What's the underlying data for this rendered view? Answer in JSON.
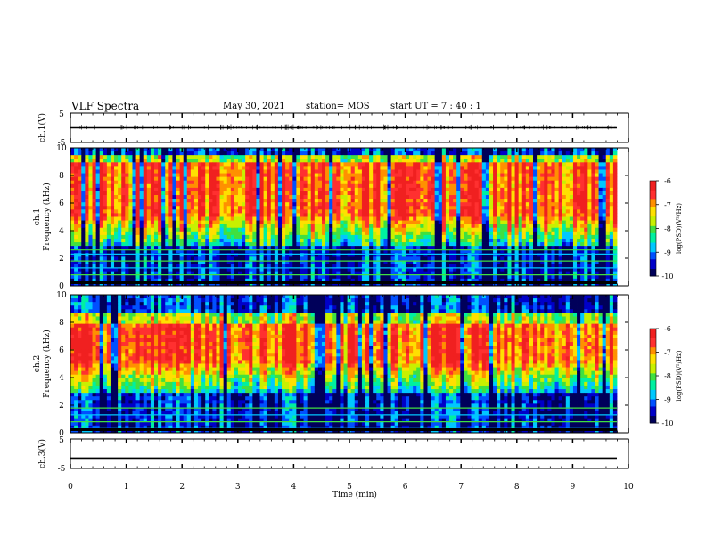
{
  "header": {
    "title": "VLF Spectra",
    "date": "May 30, 2021",
    "station": "station= MOS",
    "start": "start  UT =   7 : 40 : 1"
  },
  "colors": {
    "colormap": [
      "#00005a",
      "#0000c8",
      "#0050ff",
      "#00c8ff",
      "#00f0a0",
      "#40e040",
      "#c8f000",
      "#ffe000",
      "#ff9000",
      "#ff3030",
      "#f02020"
    ],
    "trace": "#000000"
  },
  "chart_data": [
    {
      "type": "line",
      "name": "ch1-waveform",
      "ylabel": "ch.1(V)",
      "ylim": [
        -5,
        5
      ],
      "y_ticks": [
        "5",
        "-5"
      ],
      "xlim": [
        0,
        10
      ],
      "baseline": 0
    },
    {
      "type": "heatmap",
      "name": "ch1-spectrogram",
      "ylabel_line1": "ch.1",
      "ylabel_line2": "Frequency (kHz)",
      "ylim": [
        0,
        10
      ],
      "y_ticks": [
        "0",
        "2",
        "4",
        "6",
        "8",
        "10"
      ],
      "xlim": [
        0,
        10
      ],
      "color_range": [
        -10,
        -6
      ],
      "colorbar_ticks": [
        "-6",
        "-7",
        "-8",
        "-9",
        "-10"
      ],
      "colorbar_label": "log(PSD)(V²/Hz)",
      "dominant_band_khz": [
        5,
        9
      ],
      "line_interference_khz": [
        0.3,
        0.8,
        1.3,
        1.8,
        2.3,
        2.6
      ]
    },
    {
      "type": "heatmap",
      "name": "ch2-spectrogram",
      "ylabel_line1": "ch.2",
      "ylabel_line2": "Frequency (kHz)",
      "ylim": [
        0,
        10
      ],
      "y_ticks": [
        "0",
        "2",
        "4",
        "6",
        "8",
        "10"
      ],
      "xlim": [
        0,
        10
      ],
      "color_range": [
        -10,
        -6
      ],
      "colorbar_ticks": [
        "-6",
        "-7",
        "-8",
        "-9",
        "-10"
      ],
      "colorbar_label": "log(PSD)(V²/Hz)",
      "dominant_band_khz": [
        5,
        8
      ],
      "line_interference_khz": [
        0.3,
        0.8,
        1.3,
        1.8
      ]
    },
    {
      "type": "line",
      "name": "ch3-waveform",
      "ylabel": "ch.3(V)",
      "ylim": [
        -5,
        5
      ],
      "y_ticks": [
        "5",
        "-5"
      ],
      "xlim": [
        0,
        10
      ],
      "baseline": -1.5
    }
  ],
  "x_axis": {
    "label": "Time  (min)",
    "ticks": [
      "0",
      "1",
      "2",
      "3",
      "4",
      "5",
      "6",
      "7",
      "8",
      "9",
      "10"
    ]
  }
}
